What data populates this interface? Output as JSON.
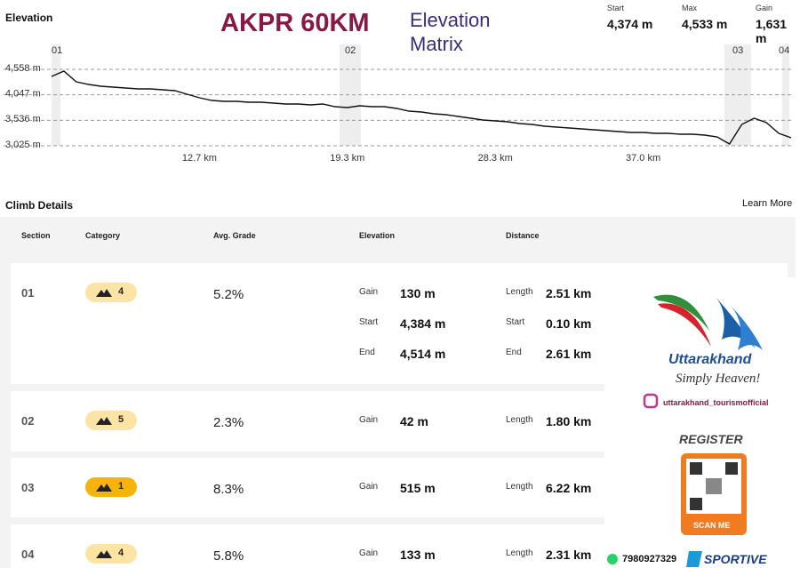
{
  "header": {
    "label": "Elevation",
    "title": "AKPR 60KM",
    "subtitle": "Elevation Matrix",
    "stats": [
      {
        "label": "Start",
        "value": "4,374 m"
      },
      {
        "label": "Max",
        "value": "4,533 m"
      },
      {
        "label": "Gain",
        "value": "1,631 m"
      }
    ]
  },
  "chart_data": {
    "type": "line",
    "color": "#111111",
    "categories": [
      null,
      null,
      null,
      null,
      null,
      null,
      null,
      null,
      null,
      null,
      null,
      null,
      "12.7 km",
      null,
      null,
      null,
      null,
      null,
      null,
      null,
      null,
      null,
      null,
      null,
      "19.3 km",
      null,
      null,
      null,
      null,
      null,
      null,
      null,
      null,
      null,
      null,
      null,
      "28.3 km",
      null,
      null,
      null,
      null,
      null,
      null,
      null,
      null,
      null,
      null,
      null,
      "37.0 km",
      null,
      null,
      null,
      null,
      null,
      null,
      null,
      null,
      null,
      null,
      null,
      null
    ],
    "values": [
      4416,
      4523,
      4309,
      4255,
      4220,
      4202,
      4184,
      4166,
      4166,
      4148,
      4130,
      4059,
      3988,
      3934,
      3917,
      3917,
      3899,
      3899,
      3881,
      3863,
      3863,
      3845,
      3863,
      3810,
      3792,
      3827,
      3810,
      3810,
      3774,
      3720,
      3703,
      3667,
      3649,
      3613,
      3578,
      3542,
      3524,
      3506,
      3471,
      3453,
      3417,
      3399,
      3382,
      3364,
      3346,
      3328,
      3310,
      3292,
      3292,
      3275,
      3275,
      3257,
      3257,
      3239,
      3203,
      3061,
      3453,
      3578,
      3489,
      3275,
      3185
    ],
    "ylim": [
      3025,
      4558
    ],
    "yticks": [
      {
        "value": 3025,
        "label": "3,025 m"
      },
      {
        "value": 3536,
        "label": "3,536 m"
      },
      {
        "value": 4047,
        "label": "4,047 m"
      },
      {
        "value": 4558,
        "label": "4,558 m"
      }
    ],
    "grid": true,
    "section_labels": [
      "01",
      "02",
      "03",
      "04"
    ]
  },
  "climb": {
    "title": "Climb Details",
    "link": "Learn More",
    "columns": [
      "Section",
      "Category",
      "Avg. Grade",
      "Elevation",
      "Distance"
    ],
    "rows": [
      {
        "section": "01",
        "category": "4",
        "grade": "5.2%",
        "elevation": [
          {
            "label": "Gain",
            "value": "130 m"
          },
          {
            "label": "Start",
            "value": "4,384 m"
          },
          {
            "label": "End",
            "value": "4,514 m"
          }
        ],
        "distance": [
          {
            "label": "Length",
            "value": "2.51 km"
          },
          {
            "label": "Start",
            "value": "0.10 km"
          },
          {
            "label": "End",
            "value": "2.61 km"
          }
        ]
      },
      {
        "section": "02",
        "category": "5",
        "grade": "2.3%",
        "elevation": [
          {
            "label": "Gain",
            "value": "42 m"
          }
        ],
        "distance": [
          {
            "label": "Length",
            "value": "1.80 km"
          }
        ]
      },
      {
        "section": "03",
        "category": "1",
        "grade": "8.3%",
        "elevation": [
          {
            "label": "Gain",
            "value": "515 m"
          }
        ],
        "distance": [
          {
            "label": "Length",
            "value": "6.22 km"
          }
        ]
      },
      {
        "section": "04",
        "category": "4",
        "grade": "5.8%",
        "elevation": [
          {
            "label": "Gain",
            "value": "133 m"
          }
        ],
        "distance": [
          {
            "label": "Length",
            "value": "2.31 km"
          }
        ]
      }
    ]
  },
  "ad": {
    "brand": "Uttarakhand",
    "tagline": "Simply Heaven!",
    "handle": "uttarakhand_tourismofficial",
    "register": "REGISTER",
    "scan": "SCAN ME",
    "phone": "7980927329",
    "sponsor": "SPORTIVE"
  }
}
